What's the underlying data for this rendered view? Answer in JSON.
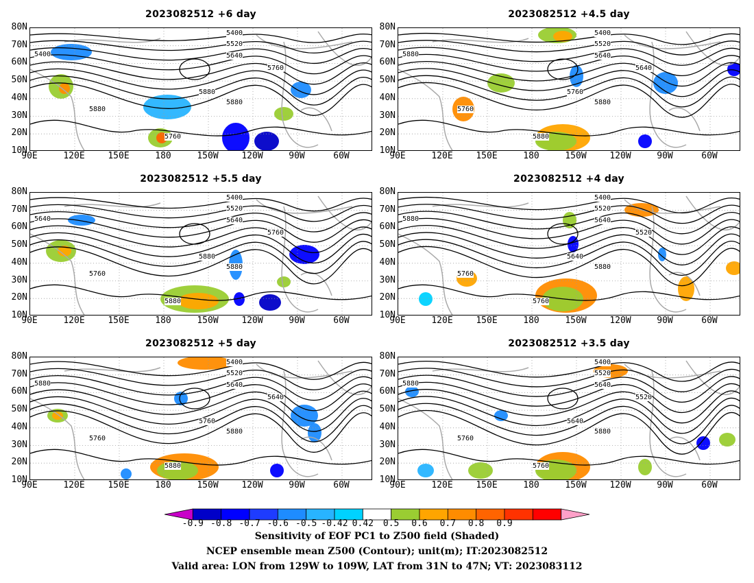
{
  "panels": [
    {
      "title": "2023082512  +6 day",
      "contours": [
        "5400",
        "5520",
        "5640",
        "5760",
        "5880",
        "5880",
        "5760",
        "5880",
        "5400"
      ]
    },
    {
      "title": "2023082512  +4.5 day",
      "contours": [
        "5400",
        "5520",
        "5640",
        "5640",
        "5760",
        "5760",
        "5880",
        "5880",
        "5880"
      ]
    },
    {
      "title": "2023082512  +5.5 day",
      "contours": [
        "5400",
        "5520",
        "5640",
        "5760",
        "5880",
        "5760",
        "5880",
        "5880",
        "5640"
      ]
    },
    {
      "title": "2023082512  +4 day",
      "contours": [
        "5400",
        "5520",
        "5640",
        "5520",
        "5640",
        "5760",
        "5760",
        "5880",
        "5880"
      ]
    },
    {
      "title": "2023082512  +5 day",
      "contours": [
        "5400",
        "5520",
        "5640",
        "5640",
        "5760",
        "5760",
        "5880",
        "5880",
        "5880"
      ]
    },
    {
      "title": "2023082512  +3.5 day",
      "contours": [
        "5400",
        "5520",
        "5640",
        "5520",
        "5640",
        "5760",
        "5760",
        "5880",
        "5880"
      ]
    }
  ],
  "y_ticks": [
    "80N",
    "70N",
    "60N",
    "50N",
    "40N",
    "30N",
    "20N",
    "10N"
  ],
  "x_ticks": [
    "90E",
    "120E",
    "150E",
    "180",
    "150W",
    "120W",
    "90W",
    "60W"
  ],
  "colorbar": {
    "ticks": [
      "-0.9",
      "-0.8",
      "-0.7",
      "-0.6",
      "-0.5",
      "-0.42",
      "0.42",
      "0.5",
      "0.6",
      "0.7",
      "0.8",
      "0.9"
    ],
    "colors": [
      "#c800c8",
      "#0000c8",
      "#0000ff",
      "#1e3cff",
      "#1e8cff",
      "#28b4ff",
      "#00d2ff",
      "#ffffff",
      "#9acd32",
      "#ffa500",
      "#ff8c00",
      "#ff6400",
      "#ff3200",
      "#ff0000",
      "#ffa0c8"
    ]
  },
  "caption": {
    "line1": "Sensitivity of EOF PC1 to Z500 field (Shaded)",
    "line2": "NCEP ensemble mean Z500 (Contour); unit(m); IT:2023082512",
    "line3": "Valid area: LON from 129W to 109W, LAT from 31N to 47N; VT: 2023083112"
  }
}
